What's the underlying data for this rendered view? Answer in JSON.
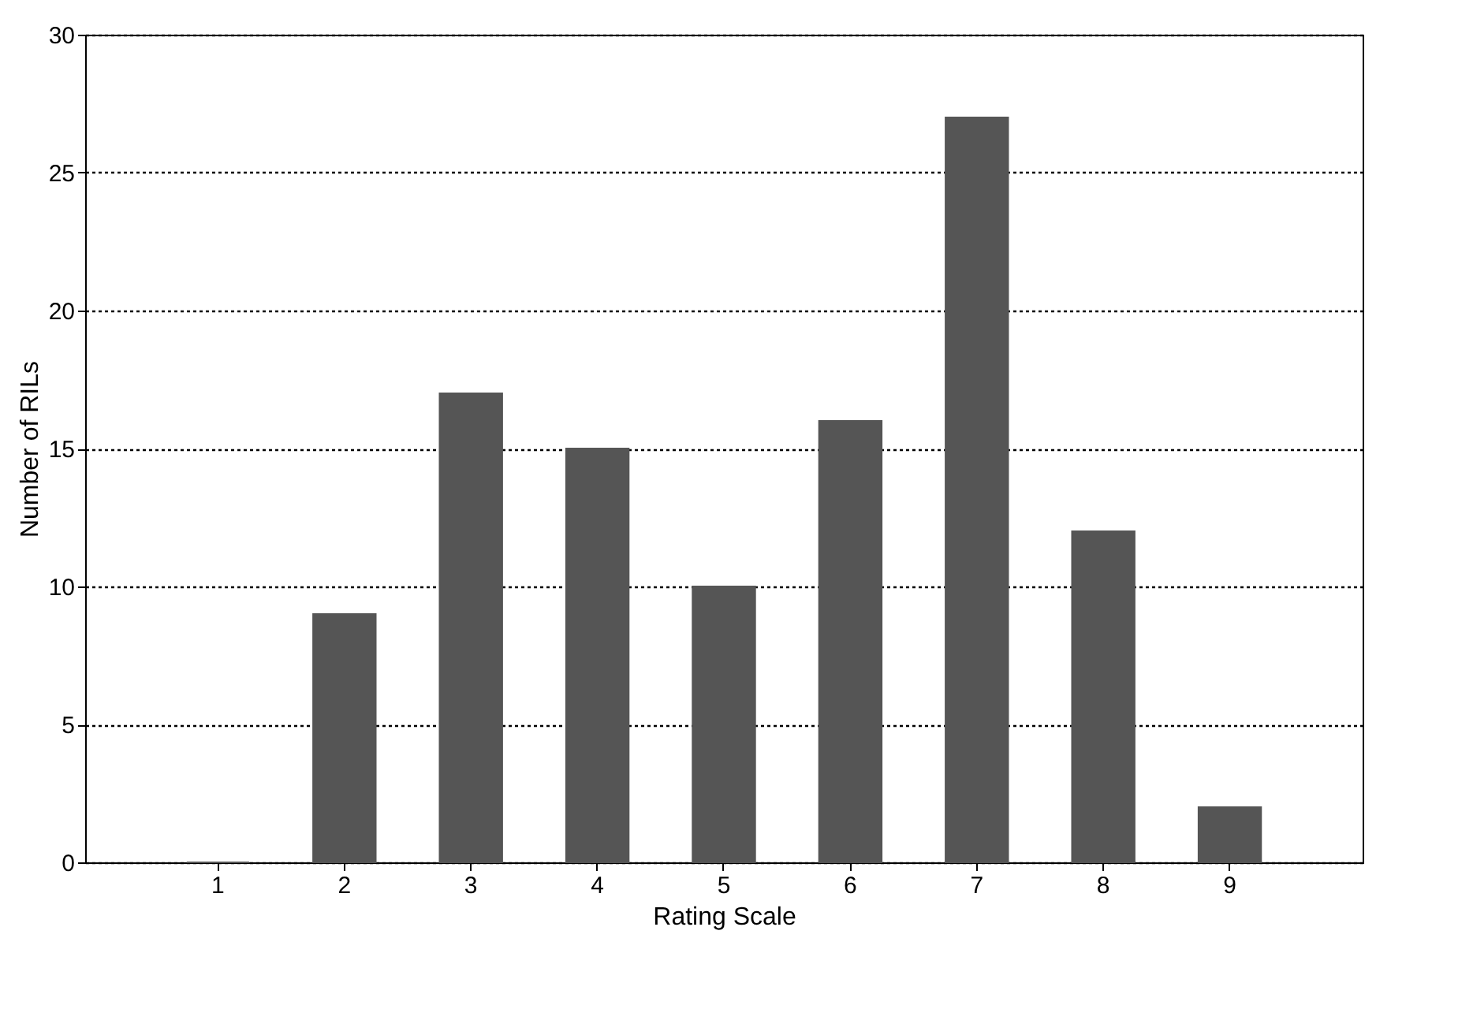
{
  "chart_data": {
    "type": "bar",
    "xlabel": "Rating Scale",
    "ylabel": "Number of RILs",
    "categories": [
      "1",
      "2",
      "3",
      "4",
      "5",
      "6",
      "7",
      "8",
      "9"
    ],
    "values": [
      0,
      9,
      17,
      15,
      10,
      16,
      27,
      12,
      2
    ],
    "color": "#555555",
    "ylim": [
      0,
      30
    ],
    "yticks": [
      0,
      5,
      10,
      15,
      20,
      25,
      30
    ],
    "grid": "y",
    "line_style": "dotted"
  }
}
